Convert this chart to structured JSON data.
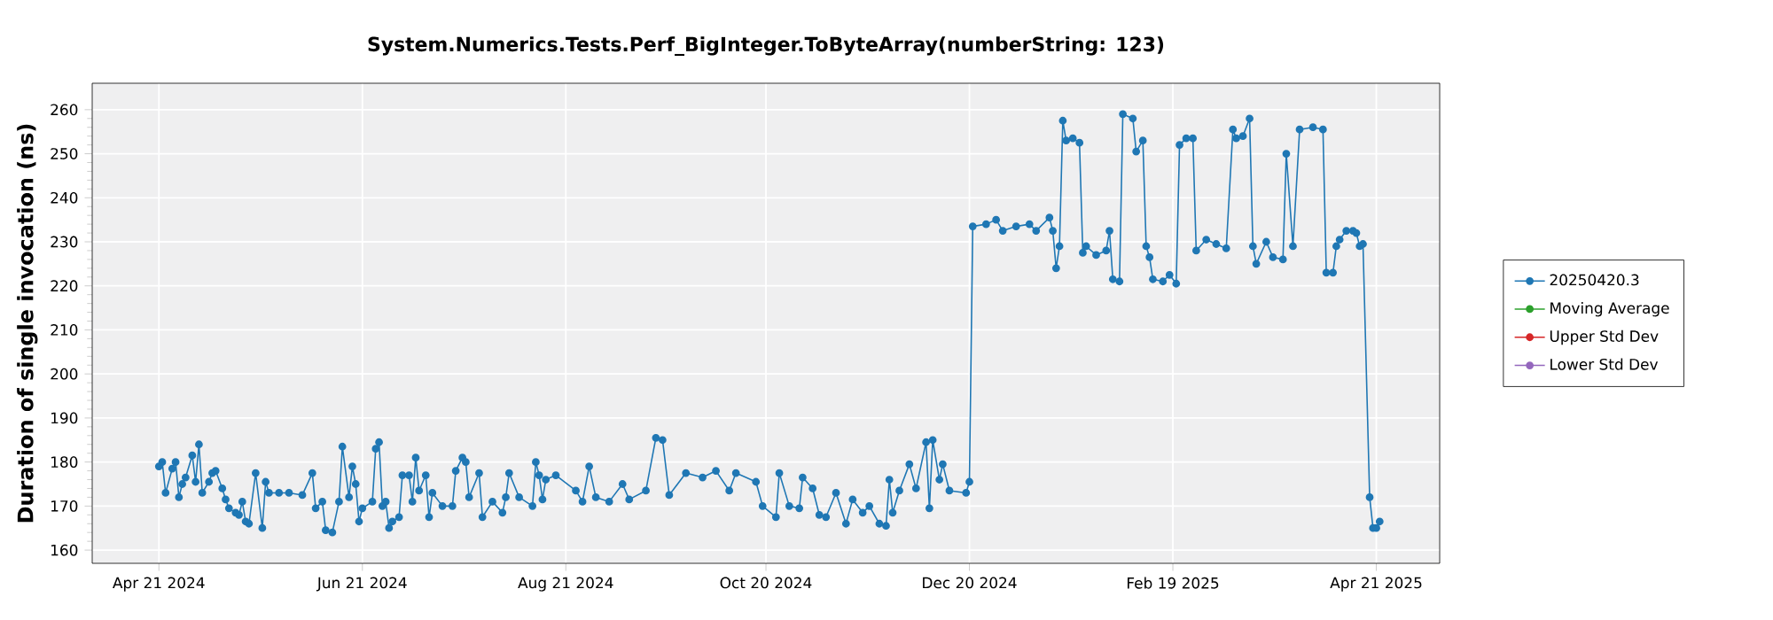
{
  "chart_data": {
    "type": "line",
    "title": "System.Numerics.Tests.Perf_BigInteger.ToByteArray(numberString: 123)",
    "ylabel": "Duration of single invocation (ns)",
    "xlim": [
      "2024-04-01",
      "2025-05-10"
    ],
    "xticks": [
      {
        "value": "2024-04-21",
        "label": "Apr 21 2024"
      },
      {
        "value": "2024-06-21",
        "label": "Jun 21 2024"
      },
      {
        "value": "2024-08-21",
        "label": "Aug 21 2024"
      },
      {
        "value": "2024-10-20",
        "label": "Oct 20 2024"
      },
      {
        "value": "2024-12-20",
        "label": "Dec 20 2024"
      },
      {
        "value": "2025-02-19",
        "label": "Feb 19 2025"
      },
      {
        "value": "2025-04-21",
        "label": "Apr 21 2025"
      }
    ],
    "ylim": [
      157,
      266
    ],
    "yticks": [
      160,
      170,
      180,
      190,
      200,
      210,
      220,
      230,
      240,
      250,
      260
    ],
    "grid": true,
    "legend": "right",
    "marker": "circle",
    "series": [
      {
        "name": "20250420.3",
        "color": "#1f77b4",
        "x": [
          "2024-04-21",
          "2024-04-22",
          "2024-04-23",
          "2024-04-25",
          "2024-04-26",
          "2024-04-27",
          "2024-04-28",
          "2024-04-29",
          "2024-05-01",
          "2024-05-02",
          "2024-05-03",
          "2024-05-04",
          "2024-05-06",
          "2024-05-07",
          "2024-05-08",
          "2024-05-10",
          "2024-05-11",
          "2024-05-12",
          "2024-05-14",
          "2024-05-15",
          "2024-05-16",
          "2024-05-17",
          "2024-05-18",
          "2024-05-20",
          "2024-05-22",
          "2024-05-23",
          "2024-05-24",
          "2024-05-27",
          "2024-05-30",
          "2024-06-03",
          "2024-06-06",
          "2024-06-07",
          "2024-06-09",
          "2024-06-10",
          "2024-06-12",
          "2024-06-14",
          "2024-06-15",
          "2024-06-17",
          "2024-06-18",
          "2024-06-19",
          "2024-06-20",
          "2024-06-21",
          "2024-06-24",
          "2024-06-25",
          "2024-06-26",
          "2024-06-27",
          "2024-06-28",
          "2024-06-29",
          "2024-06-30",
          "2024-07-02",
          "2024-07-03",
          "2024-07-05",
          "2024-07-06",
          "2024-07-07",
          "2024-07-08",
          "2024-07-10",
          "2024-07-11",
          "2024-07-12",
          "2024-07-15",
          "2024-07-18",
          "2024-07-19",
          "2024-07-21",
          "2024-07-22",
          "2024-07-23",
          "2024-07-26",
          "2024-07-27",
          "2024-07-30",
          "2024-08-02",
          "2024-08-03",
          "2024-08-04",
          "2024-08-07",
          "2024-08-11",
          "2024-08-12",
          "2024-08-13",
          "2024-08-14",
          "2024-08-15",
          "2024-08-18",
          "2024-08-24",
          "2024-08-26",
          "2024-08-28",
          "2024-08-30",
          "2024-09-03",
          "2024-09-07",
          "2024-09-09",
          "2024-09-14",
          "2024-09-17",
          "2024-09-19",
          "2024-09-21",
          "2024-09-26",
          "2024-10-01",
          "2024-10-05",
          "2024-10-09",
          "2024-10-11",
          "2024-10-17",
          "2024-10-19",
          "2024-10-23",
          "2024-10-24",
          "2024-10-27",
          "2024-10-30",
          "2024-10-31",
          "2024-11-03",
          "2024-11-05",
          "2024-11-07",
          "2024-11-10",
          "2024-11-13",
          "2024-11-15",
          "2024-11-18",
          "2024-11-20",
          "2024-11-23",
          "2024-11-25",
          "2024-11-26",
          "2024-11-27",
          "2024-11-29",
          "2024-12-02",
          "2024-12-04",
          "2024-12-07",
          "2024-12-08",
          "2024-12-09",
          "2024-12-11",
          "2024-12-12",
          "2024-12-14",
          "2024-12-19",
          "2024-12-20",
          "2024-12-21",
          "2024-12-25",
          "2024-12-28",
          "2024-12-30",
          "2025-01-03",
          "2025-01-07",
          "2025-01-09",
          "2025-01-13",
          "2025-01-14",
          "2025-01-15",
          "2025-01-16",
          "2025-01-17",
          "2025-01-18",
          "2025-01-20",
          "2025-01-22",
          "2025-01-23",
          "2025-01-24",
          "2025-01-27",
          "2025-01-30",
          "2025-01-31",
          "2025-02-01",
          "2025-02-03",
          "2025-02-04",
          "2025-02-07",
          "2025-02-08",
          "2025-02-10",
          "2025-02-11",
          "2025-02-12",
          "2025-02-13",
          "2025-02-16",
          "2025-02-18",
          "2025-02-20",
          "2025-02-21",
          "2025-02-23",
          "2025-02-25",
          "2025-02-26",
          "2025-03-01",
          "2025-03-04",
          "2025-03-07",
          "2025-03-09",
          "2025-03-10",
          "2025-03-12",
          "2025-03-14",
          "2025-03-15",
          "2025-03-16",
          "2025-03-19",
          "2025-03-21",
          "2025-03-24",
          "2025-03-25",
          "2025-03-27",
          "2025-03-29",
          "2025-04-02",
          "2025-04-05",
          "2025-04-06",
          "2025-04-08",
          "2025-04-09",
          "2025-04-10",
          "2025-04-12",
          "2025-04-14",
          "2025-04-15",
          "2025-04-16",
          "2025-04-17",
          "2025-04-19",
          "2025-04-20",
          "2025-04-21",
          "2025-04-22"
        ],
        "values": [
          179,
          180,
          173,
          178.5,
          180,
          172,
          175,
          176.5,
          181.5,
          175.5,
          184,
          173,
          175.5,
          177.5,
          178,
          174,
          171.5,
          169.5,
          168.5,
          168,
          171,
          166.5,
          166,
          177.5,
          165,
          175.5,
          173,
          173,
          173,
          172.5,
          177.5,
          169.5,
          171,
          164.5,
          164,
          171,
          183.5,
          172,
          179,
          175,
          166.5,
          169.5,
          171,
          183,
          184.5,
          170,
          171,
          165,
          166.5,
          167.5,
          177,
          177,
          171,
          181,
          173.5,
          177,
          167.5,
          173,
          170,
          170,
          178,
          181,
          180,
          172,
          177.5,
          167.5,
          171,
          168.5,
          172,
          177.5,
          172,
          170,
          180,
          177,
          171.5,
          176,
          177,
          173.5,
          171,
          179,
          172,
          171,
          175,
          171.5,
          173.5,
          185.5,
          185,
          172.5,
          177.5,
          176.5,
          178,
          173.5,
          177.5,
          175.5,
          170,
          167.5,
          177.5,
          170,
          169.5,
          176.5,
          174,
          168,
          167.5,
          173,
          166,
          171.5,
          168.5,
          170,
          166,
          165.5,
          176,
          168.5,
          173.5,
          179.5,
          174,
          184.5,
          169.5,
          185,
          176,
          179.5,
          173.5,
          173,
          175.5,
          233.5,
          234,
          235,
          232.5,
          233.5,
          234,
          232.5,
          235.5,
          232.5,
          224,
          229,
          257.5,
          253,
          253.5,
          252.5,
          227.5,
          229,
          227,
          228,
          232.5,
          221.5,
          221,
          259,
          258,
          250.5,
          253,
          229,
          226.5,
          221.5,
          221,
          222.5,
          220.5,
          252,
          253.5,
          253.5,
          228,
          230.5,
          229.5,
          228.5,
          255.5,
          253.5,
          254,
          258,
          229,
          225,
          230,
          226.5,
          226,
          250,
          229,
          255.5,
          256,
          255.5,
          223,
          223,
          229,
          230.5,
          232.5,
          232.5,
          232,
          229,
          229.5,
          172,
          165,
          165,
          166.5
        ]
      },
      {
        "name": "Moving Average",
        "color": "#2ca02c"
      },
      {
        "name": "Upper Std Dev",
        "color": "#d62728"
      },
      {
        "name": "Lower Std Dev",
        "color": "#9467bd"
      }
    ]
  }
}
